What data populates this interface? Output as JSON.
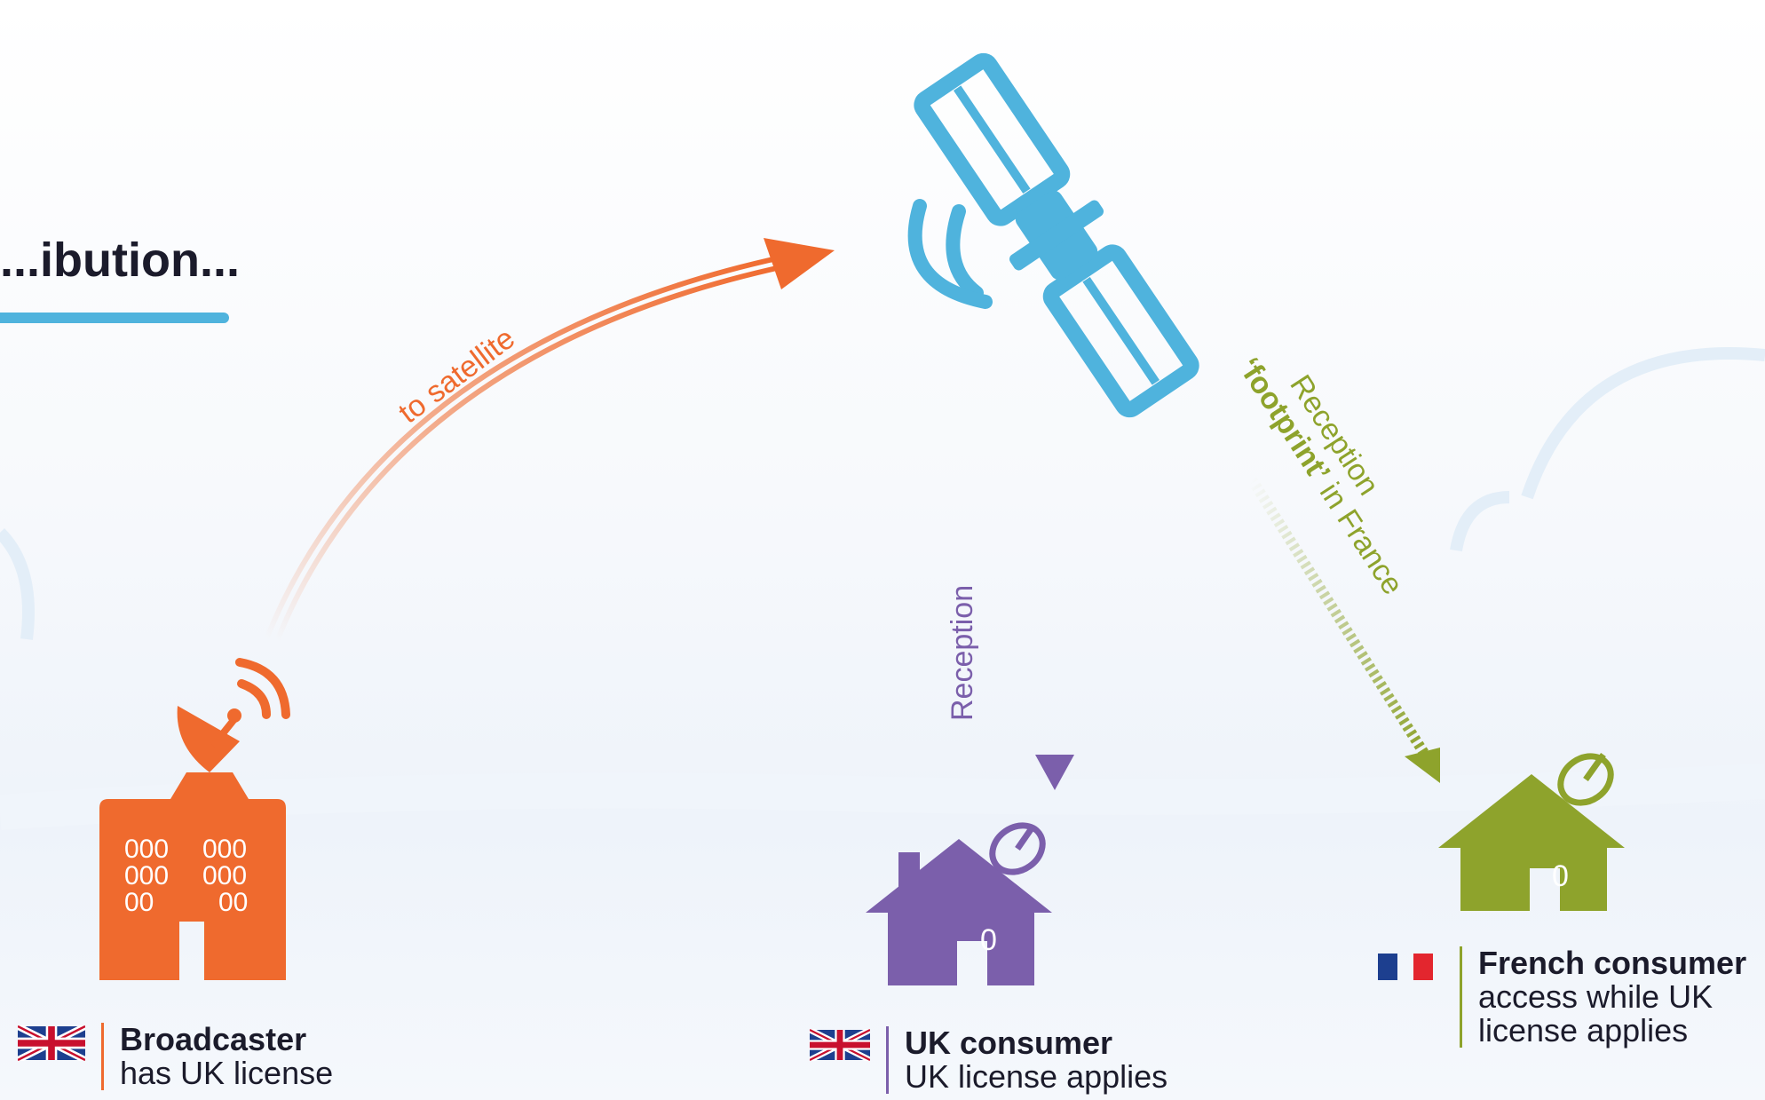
{
  "title": "...ibution...",
  "arrows": {
    "to_satellite": "to satellite",
    "reception": "Reception",
    "reception_footprint_line1": "Reception",
    "reception_footprint_bold": "‘footprint’",
    "reception_footprint_rest": " in France"
  },
  "broadcaster": {
    "title": "Broadcaster",
    "subtitle": "has UK license",
    "flag": "uk-flag-icon",
    "windows": [
      "000",
      "000",
      "000",
      "000",
      "00",
      "00"
    ]
  },
  "uk_consumer": {
    "title": "UK consumer",
    "subtitle": "UK license applies",
    "flag": "uk-flag-icon",
    "door": "0"
  },
  "french_consumer": {
    "title": "French consumer",
    "subtitle_line1": "access while UK",
    "subtitle_line2": "license applies",
    "flag": "france-flag-icon",
    "door": "0"
  },
  "colors": {
    "broadcaster": "#ef6a2e",
    "satellite": "#4fb3dd",
    "uk_consumer": "#7b5fab",
    "french_consumer": "#8ea32c",
    "title_bar": "#4fb3dd"
  }
}
